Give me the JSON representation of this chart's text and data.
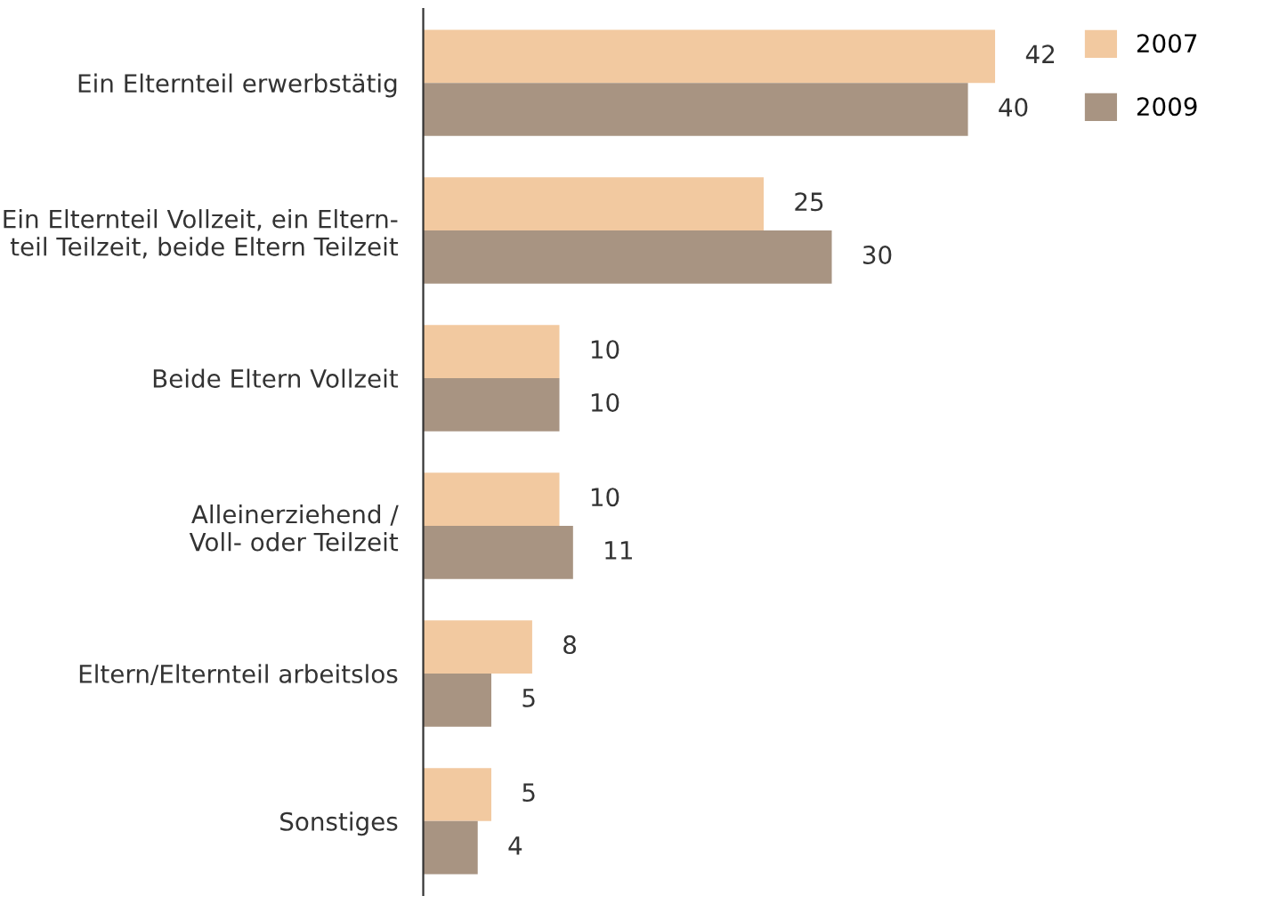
{
  "chart_data": {
    "type": "bar",
    "orientation": "horizontal",
    "categories": [
      "Ein Elternteil erwerbstätig",
      "Ein Elternteil Vollzeit, ein Eltern-\nteil Teilzeit, beide Eltern Teilzeit",
      "Beide Eltern Vollzeit",
      "Alleinerziehend /\nVoll- oder Teilzeit",
      "Eltern/Elternteil arbeitslos",
      "Sonstiges"
    ],
    "series": [
      {
        "name": "2007",
        "color": "#f2c9a0",
        "values": [
          42,
          25,
          10,
          10,
          8,
          5
        ]
      },
      {
        "name": "2009",
        "color": "#a89482",
        "values": [
          40,
          30,
          10,
          11,
          5,
          4
        ]
      }
    ],
    "data_labels": true,
    "legend": "top right",
    "grid": false
  }
}
